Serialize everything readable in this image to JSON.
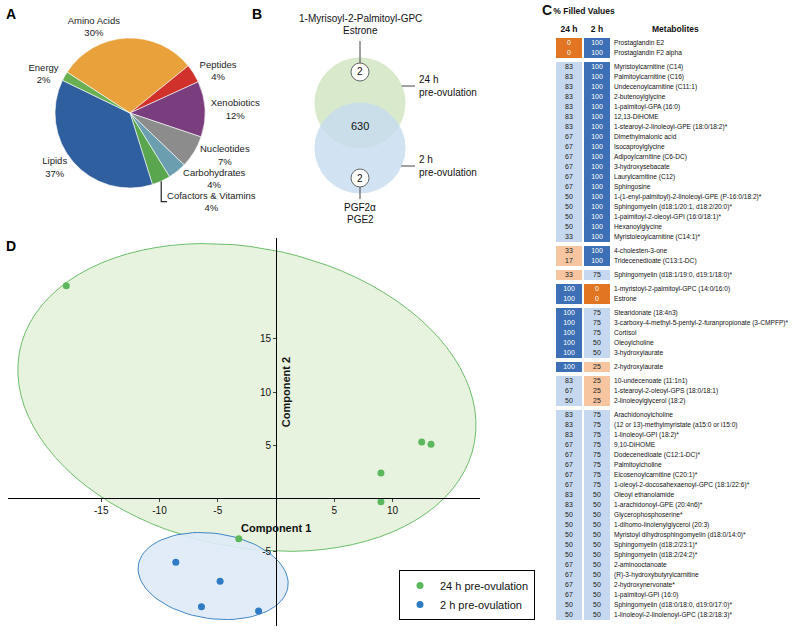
{
  "chart_data": [
    {
      "type": "pie",
      "panel": "A",
      "categories": [
        "Amino Acids",
        "Peptides",
        "Xenobiotics",
        "Nucleotides",
        "Carbohydrates",
        "Cofactors & Vitamins",
        "Lipids",
        "Energy"
      ],
      "values": [
        30,
        4,
        12,
        7,
        4,
        4,
        37,
        2
      ],
      "value_labels": [
        "30%",
        "4%",
        "12%",
        "7%",
        "4%",
        "4%",
        "37%",
        "2%"
      ],
      "colors": [
        "#e9a23b",
        "#d0322b",
        "#7a3e7e",
        "#8c8c8c",
        "#6b9fb0",
        "#5aa64e",
        "#2f5f9f",
        "#6aaf52"
      ]
    },
    {
      "type": "venn",
      "panel": "B",
      "sets": [
        {
          "name": "24 h pre-ovulation",
          "color": "#cfe6bf",
          "unique_count": 2,
          "unique_items": [
            "1-Myrisoyl-2-Palmitoyl-GPC",
            "Estrone"
          ]
        },
        {
          "name": "2 h pre-ovulation",
          "color": "#c6dcf1",
          "unique_count": 2,
          "unique_items": [
            "PGF2α",
            "PGE2"
          ]
        }
      ],
      "overlap_count": 630
    },
    {
      "type": "table",
      "panel": "C",
      "header": {
        "group": "% Filled Values",
        "columns": [
          "24 h",
          "2 h"
        ],
        "names": "Metabolites"
      },
      "groups": [
        {
          "colors": [
            "#e27522",
            "#3c6fb5"
          ],
          "rows": [
            {
              "metabolite": "Prostaglandin E2",
              "values": [
                0,
                100
              ]
            },
            {
              "metabolite": "Prostaglandin F2 alpha",
              "values": [
                0,
                100
              ]
            }
          ]
        },
        {
          "colors": [
            "#c5d8ef",
            "#3c6fb5"
          ],
          "rows": [
            {
              "metabolite": "Myristoylcarnitine (C14)",
              "values": [
                83,
                100
              ]
            },
            {
              "metabolite": "Palmitoylcarnitine (C16)",
              "values": [
                83,
                100
              ]
            },
            {
              "metabolite": "Undecenoylcarnitine (C11:1)",
              "values": [
                83,
                100
              ]
            },
            {
              "metabolite": "2-butenoylglycine",
              "values": [
                83,
                100
              ]
            },
            {
              "metabolite": "1-palmitoyl-GPA (16:0)",
              "values": [
                83,
                100
              ]
            },
            {
              "metabolite": "12,13-DiHOME",
              "values": [
                83,
                100
              ]
            },
            {
              "metabolite": "1-stearoyl-2-linoleoyl-GPE (18:0/18:2)*",
              "values": [
                83,
                100
              ]
            },
            {
              "metabolite": "Dimethylmalonic acid",
              "values": [
                67,
                100
              ]
            },
            {
              "metabolite": "Isocaproylglycine",
              "values": [
                67,
                100
              ]
            },
            {
              "metabolite": "Adipoylcarnitine (C6-DC)",
              "values": [
                67,
                100
              ]
            },
            {
              "metabolite": "3-hydroxysebacate",
              "values": [
                67,
                100
              ]
            },
            {
              "metabolite": "Laurylcarnitine (C12)",
              "values": [
                67,
                100
              ]
            },
            {
              "metabolite": "Sphingosine",
              "values": [
                67,
                100
              ]
            },
            {
              "metabolite": "1-(1-enyl-palmitoyl)-2-linoleoyl-GPE (P-16:0/18:2)*",
              "values": [
                50,
                100
              ]
            },
            {
              "metabolite": "Sphingomyelin (d18:1/20:1, d18:2/20:0)*",
              "values": [
                50,
                100
              ]
            },
            {
              "metabolite": "1-palmitoyl-2-oleoyl-GPI (16:0/18:1)*",
              "values": [
                50,
                100
              ]
            },
            {
              "metabolite": "Hexanoylglycine",
              "values": [
                50,
                100
              ]
            },
            {
              "metabolite": "Myristoleoylcarnitine (C14:1)*",
              "values": [
                33,
                100
              ]
            }
          ]
        },
        {
          "colors": [
            "#f7c6a0",
            "#3c6fb5"
          ],
          "rows": [
            {
              "metabolite": "4-cholesten-3-one",
              "values": [
                33,
                100
              ]
            },
            {
              "metabolite": "Tridecenedioate (C13:1-DC)",
              "values": [
                17,
                100
              ]
            }
          ]
        },
        {
          "colors": [
            "#f7c6a0",
            "#c5d8ef"
          ],
          "rows": [
            {
              "metabolite": "Sphingomyelin (d18:1/19:0, d19:1/18:0)*",
              "values": [
                33,
                75
              ]
            }
          ]
        },
        {
          "colors": [
            "#3c6fb5",
            "#e27522"
          ],
          "rows": [
            {
              "metabolite": "1-myristoyl-2-palmitoyl-GPC (14:0/16:0)",
              "values": [
                100,
                0
              ]
            },
            {
              "metabolite": "Estrone",
              "values": [
                100,
                0
              ]
            }
          ]
        },
        {
          "colors": [
            "#3c6fb5",
            "#c5d8ef"
          ],
          "rows": [
            {
              "metabolite": "Stearidonate (18:4n3)",
              "values": [
                100,
                75
              ]
            },
            {
              "metabolite": "3-carboxy-4-methyl-5-pentyl-2-furanpropionate (3-CMPFP)*",
              "values": [
                100,
                75
              ]
            },
            {
              "metabolite": "Cortisol",
              "values": [
                100,
                75
              ]
            },
            {
              "metabolite": "Oleoylcholine",
              "values": [
                100,
                50
              ]
            },
            {
              "metabolite": "3-hydroxylaurate",
              "values": [
                100,
                50
              ]
            }
          ]
        },
        {
          "colors": [
            "#3c6fb5",
            "#f7c6a0"
          ],
          "rows": [
            {
              "metabolite": "2-hydroxylaurate",
              "values": [
                100,
                25
              ]
            }
          ]
        },
        {
          "colors": [
            "#c5d8ef",
            "#f7c6a0"
          ],
          "rows": [
            {
              "metabolite": "10-undecenoate (11:1n1)",
              "values": [
                83,
                25
              ]
            },
            {
              "metabolite": "1-stearoyl-2-oleoyl-GPS (18:0/18:1)",
              "values": [
                67,
                25
              ]
            },
            {
              "metabolite": "2-linoleoylglycerol (18:2)",
              "values": [
                50,
                25
              ]
            }
          ]
        },
        {
          "colors": [
            "#c5d8ef",
            "#c5d8ef"
          ],
          "rows": [
            {
              "metabolite": "Arachidonoylcholine",
              "values": [
                83,
                75
              ]
            },
            {
              "metabolite": "(12 or 13)-methylmyristate (a15:0 or i15:0)",
              "values": [
                83,
                75
              ]
            },
            {
              "metabolite": "1-linoleoyl-GPI (18:2)*",
              "values": [
                83,
                75
              ]
            },
            {
              "metabolite": "9,10-DiHOME",
              "values": [
                67,
                75
              ]
            },
            {
              "metabolite": "Dodecenedioate (C12:1-DC)*",
              "values": [
                67,
                75
              ]
            },
            {
              "metabolite": "Palmitoylcholine",
              "values": [
                67,
                75
              ]
            },
            {
              "metabolite": "Eicosenoylcarnitine (C20:1)*",
              "values": [
                67,
                75
              ]
            },
            {
              "metabolite": "1-oleoyl-2-docosahexaenoyl-GPC (18:1/22:6)*",
              "values": [
                67,
                75
              ]
            },
            {
              "metabolite": "Oleoyl ethanolamide",
              "values": [
                83,
                50
              ]
            },
            {
              "metabolite": "1-arachidonoyl-GPE (20:4n6)*",
              "values": [
                83,
                50
              ]
            },
            {
              "metabolite": "Glycerophosphoserine*",
              "values": [
                50,
                50
              ]
            },
            {
              "metabolite": "1-dihomo-linolenylglycerol (20:3)",
              "values": [
                50,
                50
              ]
            },
            {
              "metabolite": "Myristoyl dihydrosphingomyelin (d18:0/14:0)*",
              "values": [
                50,
                50
              ]
            },
            {
              "metabolite": "Sphingomyelin (d18:2/23:1)*",
              "values": [
                50,
                50
              ]
            },
            {
              "metabolite": "Sphingomyelin (d18:2/24:2)*",
              "values": [
                50,
                50
              ]
            },
            {
              "metabolite": "2-aminooctanoate",
              "values": [
                67,
                50
              ]
            },
            {
              "metabolite": "(R)-3-hydroxybutyrylcarnitine",
              "values": [
                67,
                50
              ]
            },
            {
              "metabolite": "2-hydroxynervonate*",
              "values": [
                67,
                50
              ]
            },
            {
              "metabolite": "1-palmitoyl-GPI (16:0)",
              "values": [
                67,
                50
              ]
            },
            {
              "metabolite": "Sphingomyelin (d18:0/18:0, d19:0/17:0)*",
              "values": [
                50,
                50
              ]
            },
            {
              "metabolite": "1-linoleoyl-2-linolenoyl-GPC (18:2/18:3)*",
              "values": [
                50,
                50
              ]
            }
          ]
        }
      ]
    },
    {
      "type": "scatter",
      "panel": "D",
      "x_label": "Component 1",
      "y_label": "Component 2",
      "xlim": [
        -23,
        17.5
      ],
      "ylim": [
        -12,
        24.5
      ],
      "xticks": [
        -15,
        -10,
        -5,
        5,
        10
      ],
      "yticks": [
        -5,
        5,
        10,
        15
      ],
      "grid": false,
      "legend": "bottom right",
      "series": [
        {
          "name": "24 h pre-ovulation",
          "color": "#5cb85c",
          "marker": "circle",
          "x": [
            -18,
            12.5,
            13.3,
            9,
            9,
            -3.2
          ],
          "y": [
            20,
            5.3,
            5.1,
            2.4,
            -0.3,
            -3.8
          ],
          "ellipse": {
            "center": [
              -2.5,
              9.5
            ],
            "radii": [
              20,
              14
            ],
            "angle": -15,
            "color": "#e6f2dc"
          }
        },
        {
          "name": "2 h pre-ovulation",
          "color": "#2e7bc4",
          "marker": "circle",
          "x": [
            -8.6,
            -4.8,
            -6.4,
            -1.5
          ],
          "y": [
            -6,
            -7.8,
            -10.2,
            -10.6
          ],
          "ellipse": {
            "center": [
              -5.4,
              -7.3
            ],
            "radii": [
              6.5,
              4
            ],
            "angle": -10,
            "color": "#dfebf8"
          }
        }
      ]
    }
  ]
}
